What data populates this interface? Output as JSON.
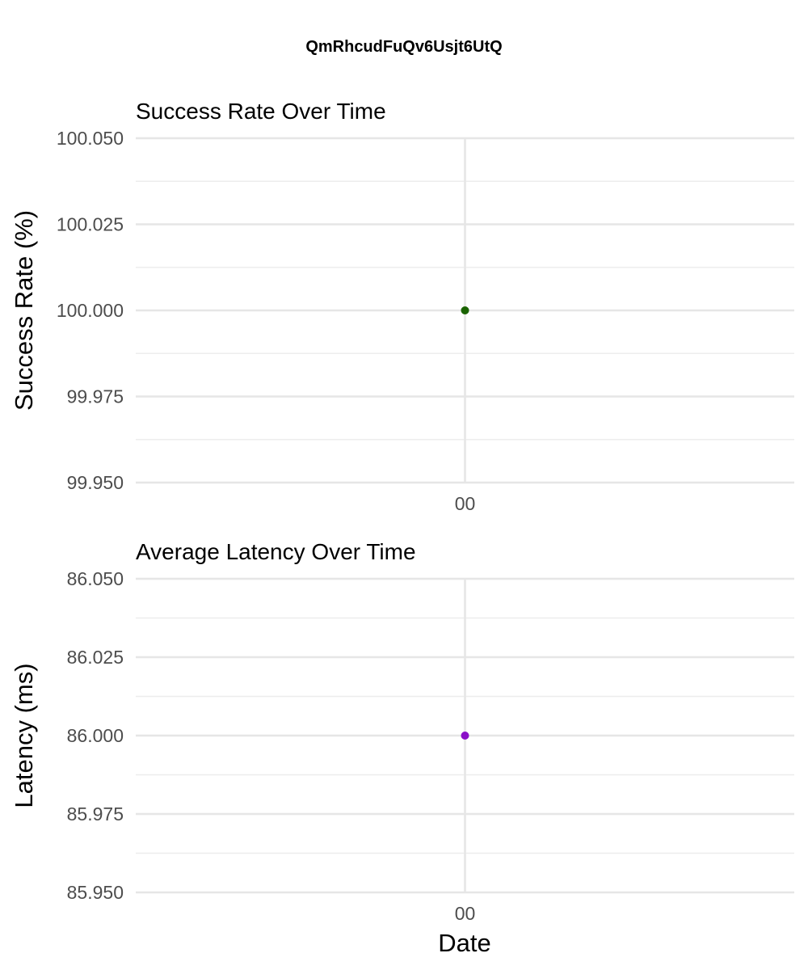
{
  "figure": {
    "title": "QmRhcudFuQv6Usjt6UtQ",
    "xlabel": "Date"
  },
  "chart_data": [
    {
      "type": "scatter",
      "title": "Success Rate Over Time",
      "xlabel": "",
      "ylabel": "Success Rate (%)",
      "x": [
        "00"
      ],
      "y": [
        100.0
      ],
      "ylim": [
        99.95,
        100.05
      ],
      "yticks": [
        "100.050",
        "100.025",
        "100.000",
        "99.975",
        "99.950"
      ],
      "xticks": [
        "00"
      ],
      "grid": true,
      "color": "#1a6300"
    },
    {
      "type": "scatter",
      "title": "Average Latency Over Time",
      "xlabel": "Date",
      "ylabel": "Latency (ms)",
      "x": [
        "00"
      ],
      "y": [
        86.0
      ],
      "ylim": [
        85.95,
        86.05
      ],
      "yticks": [
        "86.050",
        "86.025",
        "86.000",
        "85.975",
        "85.950"
      ],
      "xticks": [
        "00"
      ],
      "grid": true,
      "color": "#8b10c8"
    }
  ]
}
